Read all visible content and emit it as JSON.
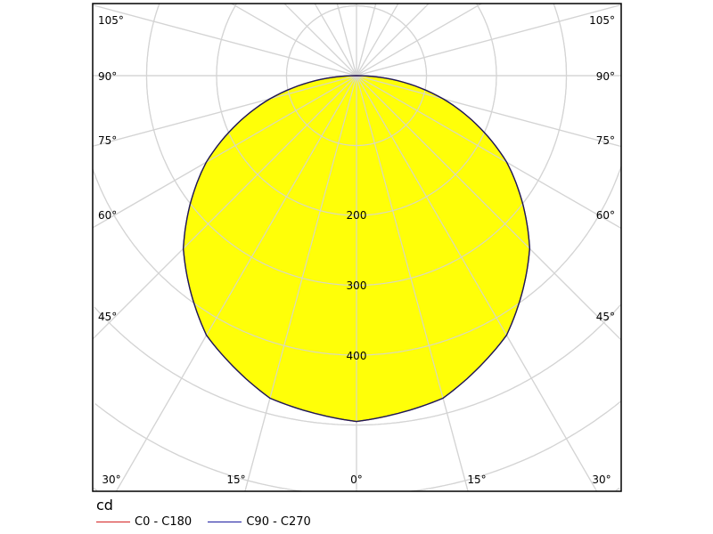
{
  "chart_data": {
    "type": "polar",
    "unit_label": "cd",
    "radial_ticks": [
      100,
      200,
      300,
      400,
      500,
      600,
      700,
      800,
      900
    ],
    "radial_tick_labels": [
      "200",
      "300",
      "400"
    ],
    "angle_tick_labels_side": [
      "105°",
      "90°",
      "75°",
      "60°",
      "45°"
    ],
    "angle_tick_labels_bottom": [
      "30°",
      "15°",
      "0°",
      "15°",
      "30°"
    ],
    "angles_deg": [
      0,
      15,
      30,
      45,
      60,
      75,
      90
    ],
    "series": [
      {
        "name": "C0 - C180",
        "color": "#d42020",
        "values": [
          495,
          478,
          429,
          350,
          248,
          128,
          0
        ]
      },
      {
        "name": "C90 - C270",
        "color": "#1a1aa0",
        "values": [
          495,
          478,
          429,
          350,
          248,
          128,
          0
        ]
      }
    ],
    "fill_color": "#ffff00",
    "outline_color": "#1a1a5a",
    "grid": true,
    "legend_position": "bottom-left"
  }
}
